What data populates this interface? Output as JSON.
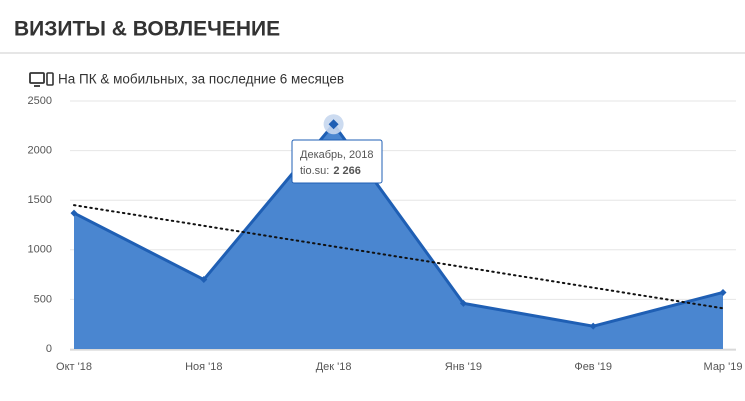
{
  "chart_data": {
    "type": "area",
    "title": "ВИЗИТЫ & ВОВЛЕЧЕНИЕ",
    "subtitle": "На ПК & мобильных, за последние 6 месяцев",
    "categories": [
      "Окт '18",
      "Ноя '18",
      "Дек '18",
      "Янв '19",
      "Фев '19",
      "Мар '19"
    ],
    "values": [
      1370,
      700,
      2266,
      460,
      230,
      570
    ],
    "value_labels": [
      null,
      null,
      "2 266",
      null,
      null,
      null
    ],
    "trend": [
      1450,
      410
    ],
    "color": "#4a86d0",
    "line_color": "#1f5fb4",
    "ylim": [
      0,
      2500
    ],
    "yticks": [
      0,
      500,
      1000,
      1500,
      2000,
      2500
    ],
    "grid": true,
    "tooltip": {
      "index": 2,
      "title": "Декабрь, 2018",
      "label": "tio.su:"
    }
  }
}
